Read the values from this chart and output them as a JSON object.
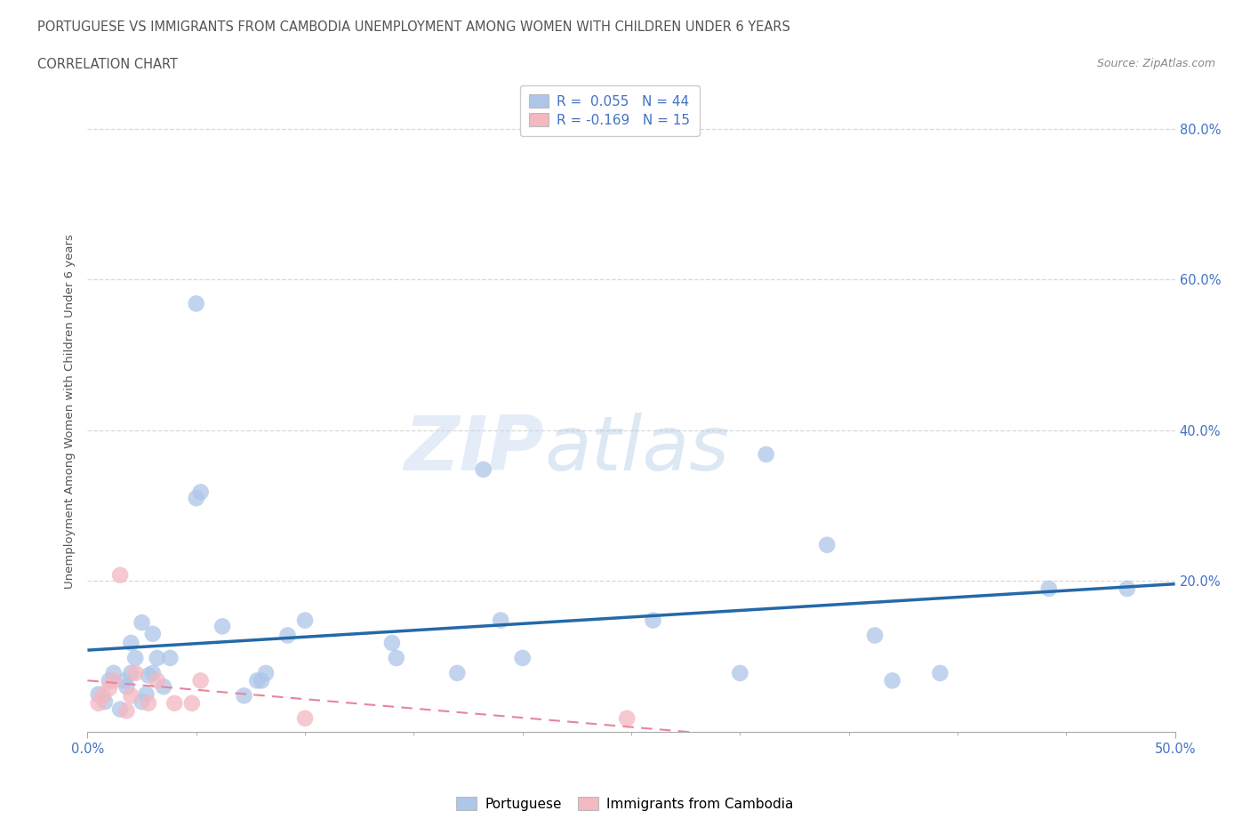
{
  "title_line1": "PORTUGUESE VS IMMIGRANTS FROM CAMBODIA UNEMPLOYMENT AMONG WOMEN WITH CHILDREN UNDER 6 YEARS",
  "title_line2": "CORRELATION CHART",
  "source_text": "Source: ZipAtlas.com",
  "ylabel": "Unemployment Among Women with Children Under 6 years",
  "xlim": [
    0.0,
    0.5
  ],
  "ylim": [
    0.0,
    0.85
  ],
  "xtick_labels": [
    "0.0%",
    "50.0%"
  ],
  "xtick_vals": [
    0.0,
    0.5
  ],
  "xtick_minor_vals": [
    0.05,
    0.1,
    0.15,
    0.2,
    0.25,
    0.3,
    0.35,
    0.4,
    0.45
  ],
  "ytick_labels": [
    "20.0%",
    "40.0%",
    "60.0%",
    "80.0%"
  ],
  "ytick_vals": [
    0.2,
    0.4,
    0.6,
    0.8
  ],
  "portuguese_color": "#aec6e8",
  "cambodia_color": "#f4b8c1",
  "portuguese_line_color": "#2469a8",
  "cambodia_line_color": "#e8849a",
  "portuguese_R": 0.055,
  "portuguese_N": 44,
  "cambodia_R": -0.169,
  "cambodia_N": 15,
  "watermark_zip": "ZIP",
  "watermark_atlas": "atlas",
  "portuguese_x": [
    0.005,
    0.008,
    0.01,
    0.012,
    0.015,
    0.017,
    0.018,
    0.02,
    0.02,
    0.022,
    0.025,
    0.025,
    0.027,
    0.028,
    0.03,
    0.03,
    0.032,
    0.035,
    0.038,
    0.05,
    0.05,
    0.052,
    0.062,
    0.072,
    0.078,
    0.08,
    0.082,
    0.092,
    0.1,
    0.14,
    0.142,
    0.17,
    0.182,
    0.19,
    0.2,
    0.26,
    0.3,
    0.312,
    0.34,
    0.362,
    0.37,
    0.392,
    0.442,
    0.478
  ],
  "portuguese_y": [
    0.05,
    0.04,
    0.068,
    0.078,
    0.03,
    0.068,
    0.06,
    0.078,
    0.118,
    0.098,
    0.145,
    0.04,
    0.05,
    0.075,
    0.13,
    0.078,
    0.098,
    0.06,
    0.098,
    0.568,
    0.31,
    0.318,
    0.14,
    0.048,
    0.068,
    0.068,
    0.078,
    0.128,
    0.148,
    0.118,
    0.098,
    0.078,
    0.348,
    0.148,
    0.098,
    0.148,
    0.078,
    0.368,
    0.248,
    0.128,
    0.068,
    0.078,
    0.19,
    0.19
  ],
  "cambodia_x": [
    0.005,
    0.007,
    0.01,
    0.012,
    0.015,
    0.018,
    0.02,
    0.022,
    0.028,
    0.032,
    0.04,
    0.048,
    0.052,
    0.1,
    0.248
  ],
  "cambodia_y": [
    0.038,
    0.048,
    0.058,
    0.068,
    0.208,
    0.028,
    0.048,
    0.078,
    0.038,
    0.068,
    0.038,
    0.038,
    0.068,
    0.018,
    0.018
  ],
  "background_color": "#ffffff",
  "grid_color": "#d8d8d8",
  "title_color": "#555555",
  "axis_tick_color": "#4472c4",
  "legend_r_color": "#4472c4",
  "source_color": "#888888"
}
